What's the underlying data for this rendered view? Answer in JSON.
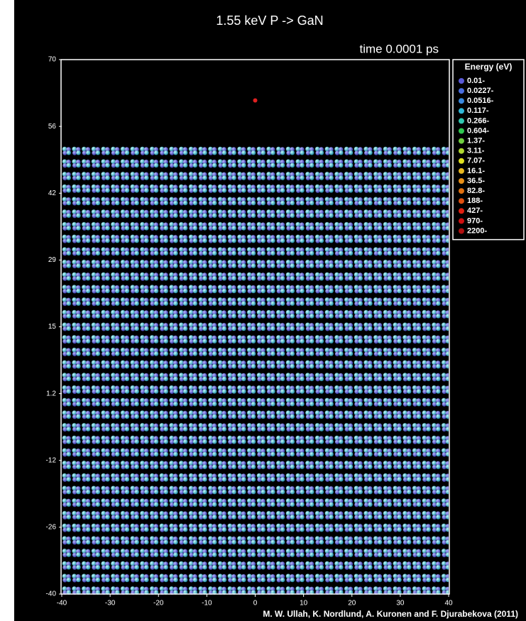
{
  "chart_data": {
    "type": "scatter",
    "title": "1.55 keV P -> GaN",
    "subtitle": "time 0.0001 ps",
    "credit": "M. W. Ullah, K. Nordlund, A. Kuronen and F. Djurabekova (2011)",
    "x": [
      0
    ],
    "y": [
      61.6
    ],
    "color": "#e02020",
    "xlim": [
      -40,
      40
    ],
    "ylim": [
      -40,
      70
    ],
    "xticks": [
      -40,
      -30,
      -20,
      -10,
      0,
      10,
      20,
      30,
      40
    ],
    "yticks": [
      -40,
      {
        "value": -26.25,
        "label": "-26"
      },
      {
        "value": -12.5,
        "label": "-12"
      },
      {
        "value": 1.25,
        "label": "1.2"
      },
      15,
      {
        "value": 28.75,
        "label": "29"
      },
      {
        "value": 42.5,
        "label": "42"
      },
      {
        "value": 56.25,
        "label": "56"
      },
      70
    ],
    "legend": {
      "title": "Energy (eV)",
      "position": "right",
      "entries": [
        {
          "label": "0.01-",
          "color": "#5a5ad8"
        },
        {
          "label": "0.0227-",
          "color": "#4a6ee0"
        },
        {
          "label": "0.0516-",
          "color": "#3a8ae0"
        },
        {
          "label": "0.117-",
          "color": "#30b8d8"
        },
        {
          "label": "0.266-",
          "color": "#30c8b0"
        },
        {
          "label": "0.604-",
          "color": "#30c850"
        },
        {
          "label": "1.37-",
          "color": "#70d040"
        },
        {
          "label": "3.11-",
          "color": "#b0d830"
        },
        {
          "label": "7.07-",
          "color": "#e0e020"
        },
        {
          "label": "16.1-",
          "color": "#e8b820"
        },
        {
          "label": "36.5-",
          "color": "#e89018"
        },
        {
          "label": "82.8-",
          "color": "#e07010"
        },
        {
          "label": "188-",
          "color": "#e05010"
        },
        {
          "label": "427-",
          "color": "#e02010"
        },
        {
          "label": "970-",
          "color": "#d01010"
        },
        {
          "label": "2200-",
          "color": "#b01010"
        }
      ]
    }
  }
}
